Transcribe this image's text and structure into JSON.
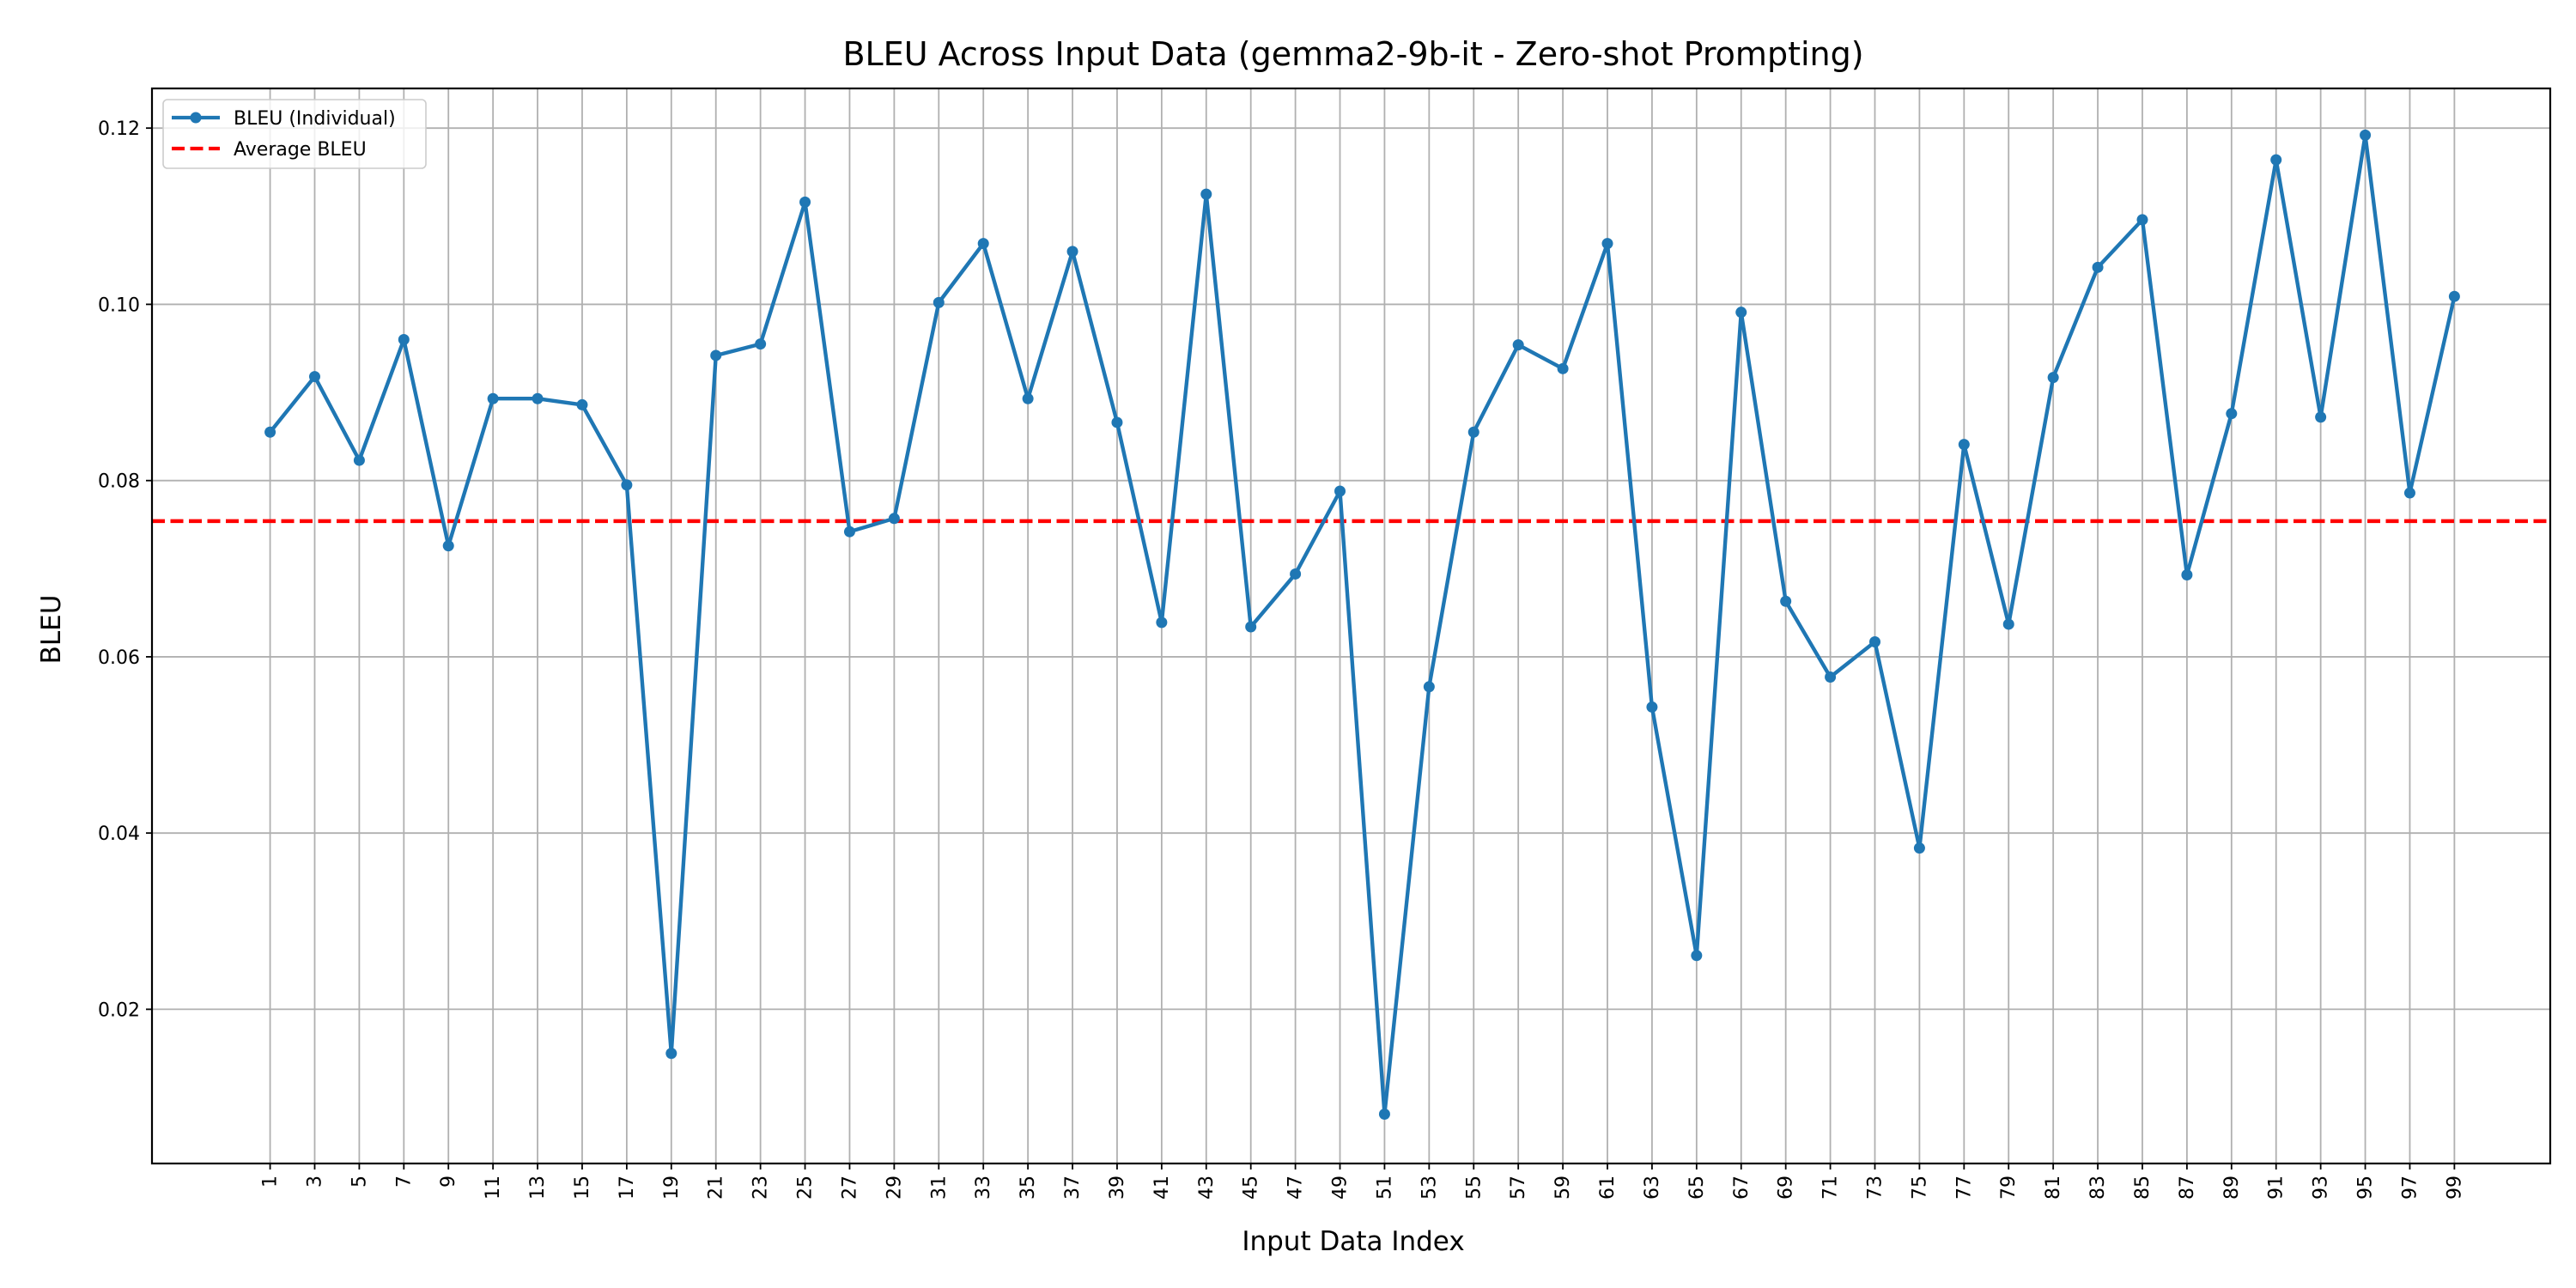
{
  "chart_data": {
    "type": "line",
    "title": "BLEU Across Input Data (gemma2-9b-it - Zero-shot Prompting)",
    "xlabel": "Input Data Index",
    "ylabel": "BLEU",
    "xlim": [
      -4.3,
      103.3
    ],
    "ylim": [
      0.0025,
      0.1245
    ],
    "yticks": [
      0.02,
      0.04,
      0.06,
      0.08,
      0.1,
      0.12
    ],
    "ytick_labels": [
      "0.02",
      "0.04",
      "0.06",
      "0.08",
      "0.10",
      "0.12"
    ],
    "xticks": [
      1,
      3,
      5,
      7,
      9,
      11,
      13,
      15,
      17,
      19,
      21,
      23,
      25,
      27,
      29,
      31,
      33,
      35,
      37,
      39,
      41,
      43,
      45,
      47,
      49,
      51,
      53,
      55,
      57,
      59,
      61,
      63,
      65,
      67,
      69,
      71,
      73,
      75,
      77,
      79,
      81,
      83,
      85,
      87,
      89,
      91,
      93,
      95,
      97,
      99
    ],
    "grid": true,
    "legend_position": "upper-left",
    "series": [
      {
        "name": "BLEU (Individual)",
        "color": "#1f77b4",
        "style": "solid-with-markers",
        "x": [
          1,
          3,
          5,
          7,
          9,
          11,
          13,
          15,
          17,
          19,
          21,
          23,
          25,
          27,
          29,
          31,
          33,
          35,
          37,
          39,
          41,
          43,
          45,
          47,
          49,
          51,
          53,
          55,
          57,
          59,
          61,
          63,
          65,
          67,
          69,
          71,
          73,
          75,
          77,
          79,
          81,
          83,
          85,
          87,
          89,
          91,
          93,
          95,
          97,
          99
        ],
        "values": [
          0.0855,
          0.0918,
          0.0823,
          0.096,
          0.0726,
          0.0893,
          0.0893,
          0.0886,
          0.0795,
          0.015,
          0.0942,
          0.0955,
          0.1116,
          0.0742,
          0.0757,
          0.1002,
          0.1069,
          0.0893,
          0.106,
          0.0866,
          0.0639,
          0.1125,
          0.0634,
          0.0694,
          0.0788,
          0.0081,
          0.0566,
          0.0855,
          0.0954,
          0.0927,
          0.1069,
          0.0543,
          0.0261,
          0.0991,
          0.0663,
          0.0577,
          0.0617,
          0.0383,
          0.0841,
          0.0637,
          0.0917,
          0.1042,
          0.1096,
          0.0693,
          0.0876,
          0.1164,
          0.0872,
          0.1192,
          0.0786,
          0.1009
        ]
      },
      {
        "name": "Average BLEU",
        "color": "#ff0000",
        "style": "dashed",
        "value": 0.0754
      }
    ]
  }
}
